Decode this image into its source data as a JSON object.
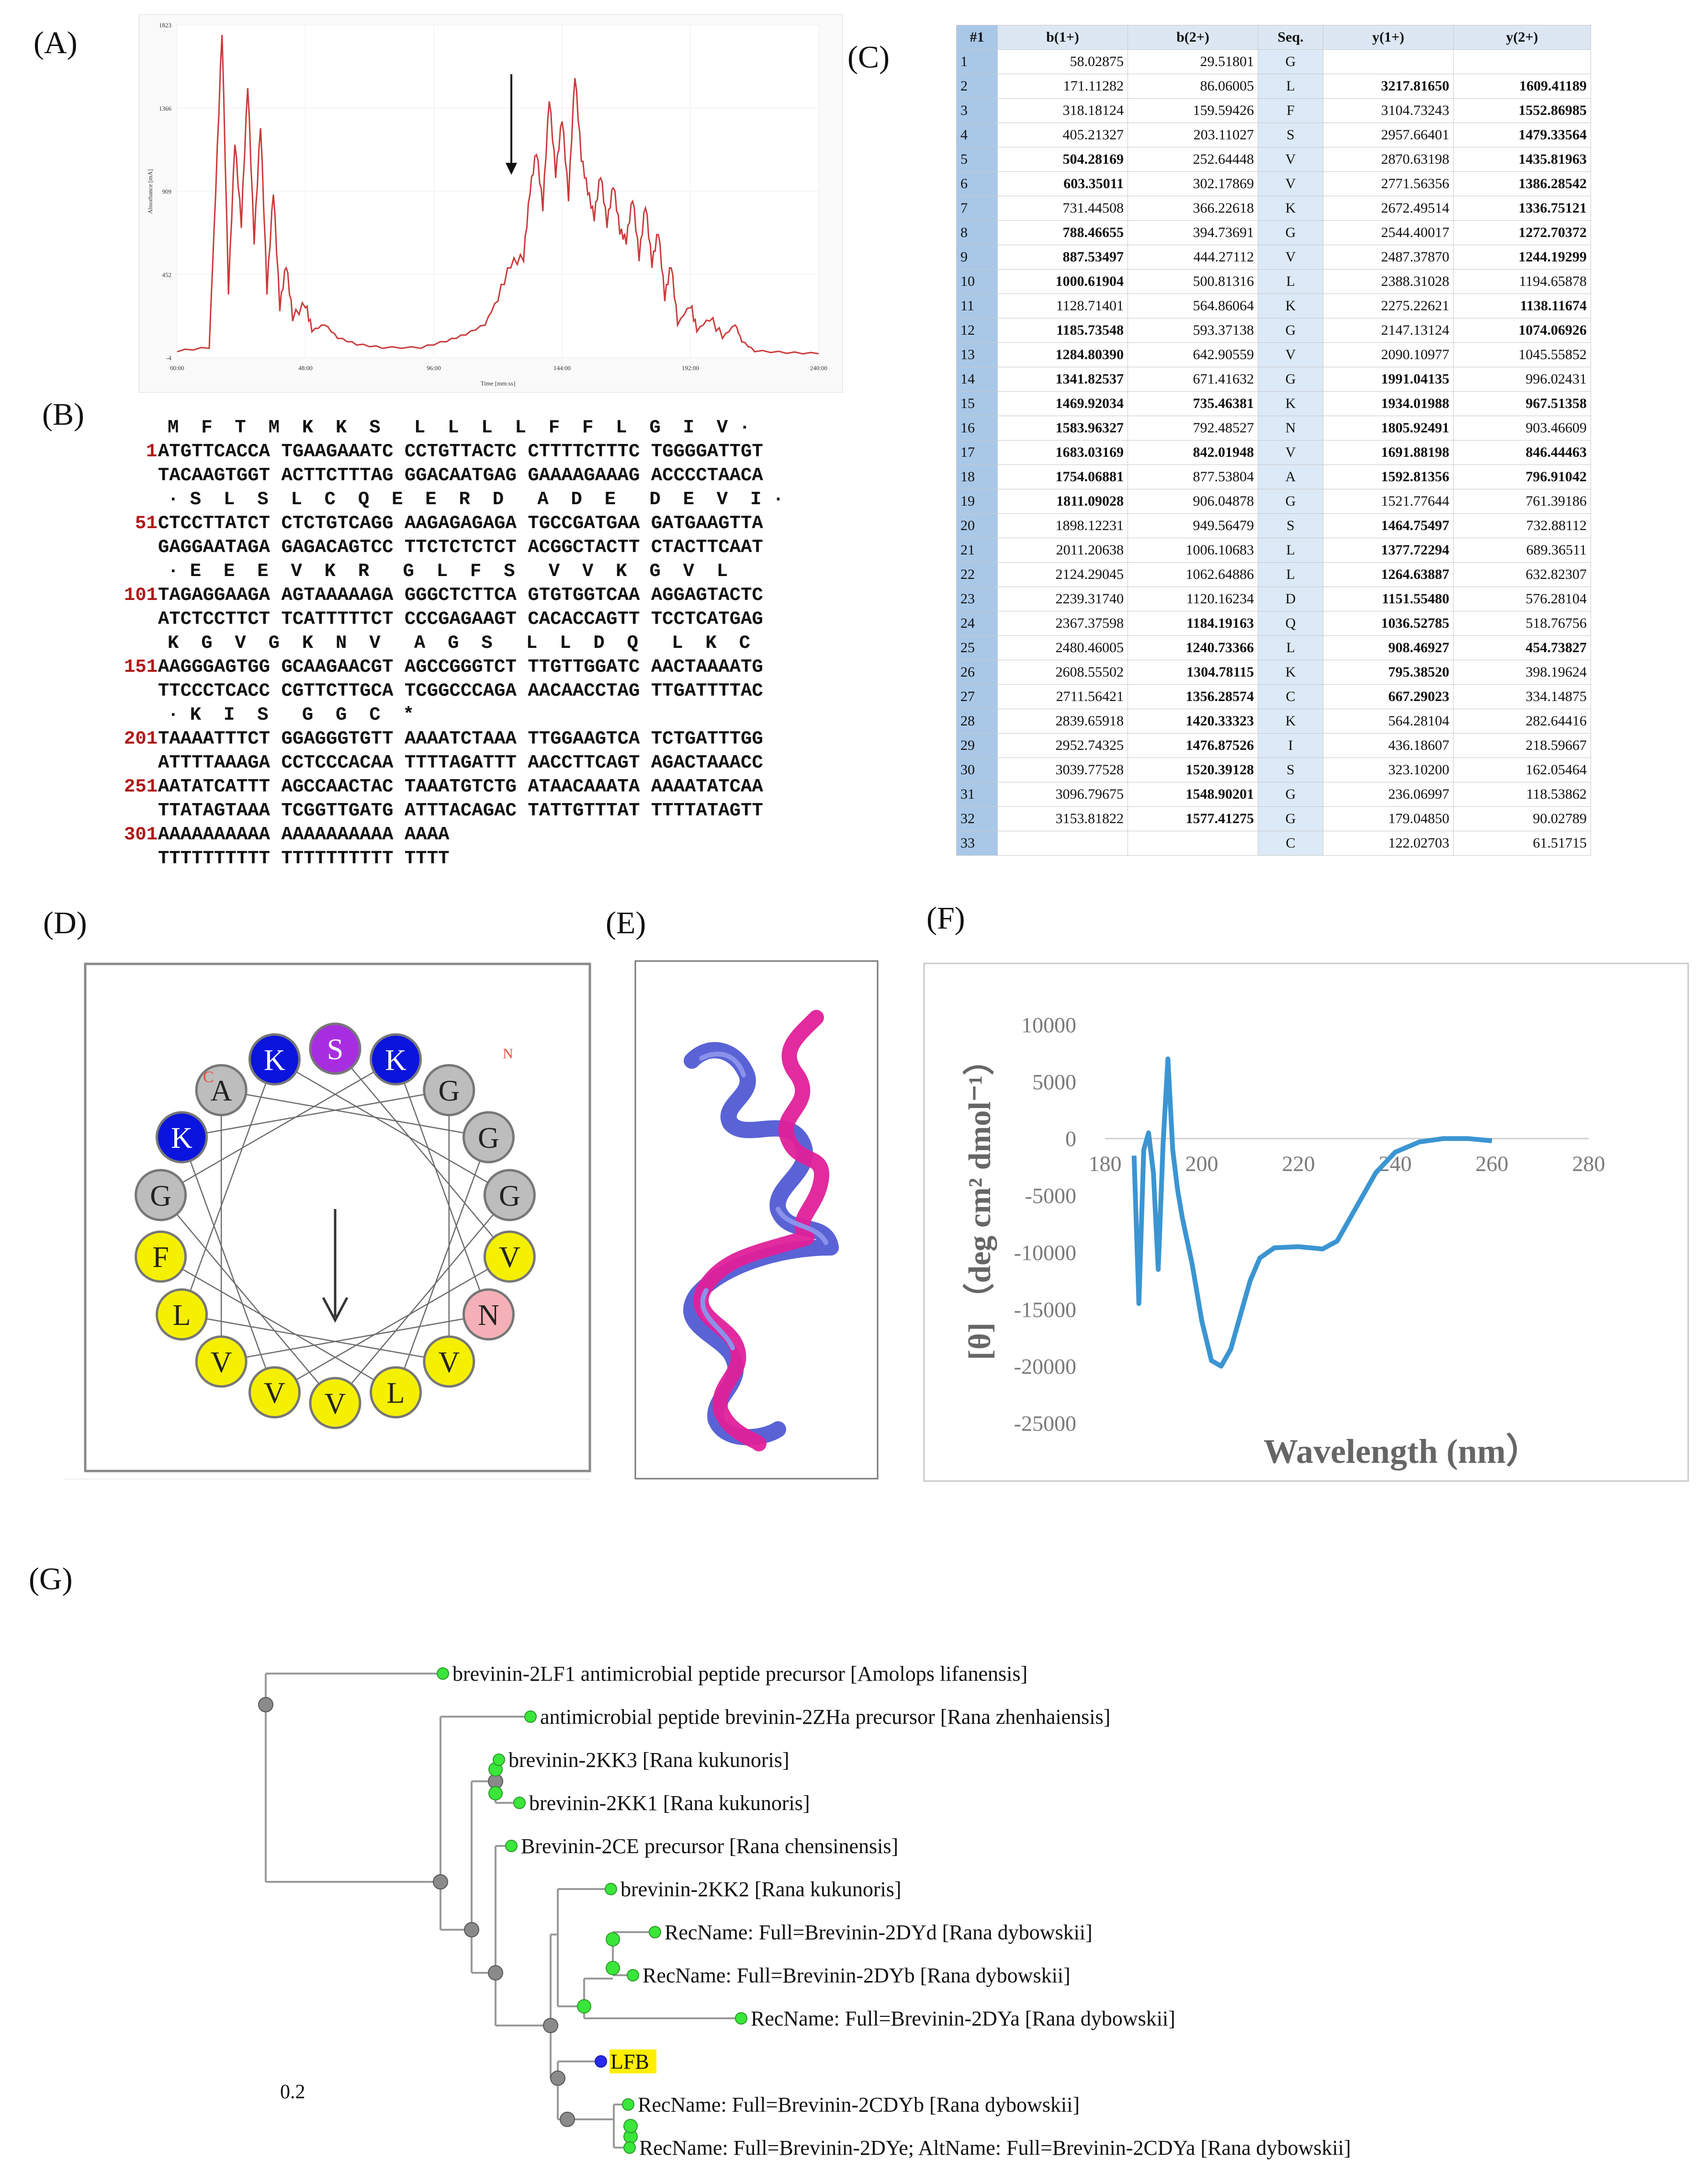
{
  "panels": {
    "A": "(A)",
    "B": "(B)",
    "C": "(C)",
    "D": "(D)",
    "E": "(E)",
    "F": "(F)",
    "G": "(G)"
  },
  "hplc": {
    "yticks": [
      "1823",
      "1366",
      "909",
      "452",
      "-4"
    ],
    "xticks": [
      "00:00",
      "48:00",
      "96:00",
      "144:00",
      "192:00",
      "240:00"
    ],
    "ylabel": "Absorbance [mA]",
    "xlabel": "Time [mm:ss]",
    "color": "#cc3a3a"
  },
  "dna": {
    "rows": [
      {
        "num": "",
        "text": "M  F  T  M  K  K  S   L  L  L  L  F  F  L  G  I  V ·",
        "kind": "aa"
      },
      {
        "num": "1",
        "text": "ATGTTCACCA TGAAGAAATC CCTGTTACTC CTTTTCTTTC TGGGGATTGT",
        "kind": "top"
      },
      {
        "num": "",
        "text": "TACAAGTGGT ACTTCTTTAG GGACAATGAG GAAAAGAAAG ACCCCTAACA",
        "kind": "bot"
      },
      {
        "num": "",
        "text": "· S  L  S  L  C  Q  E  E  R  D   A  D  E   D  E  V  I ·",
        "kind": "aa"
      },
      {
        "num": "51",
        "text": "CTCCTTATCT CTCTGTCAGG AAGAGAGAGA TGCCGATGAA GATGAAGTTA",
        "kind": "top"
      },
      {
        "num": "",
        "text": "GAGGAATAGA GAGACAGTCC TTCTCTCTCT ACGGCTACTT CTACTTCAAT",
        "kind": "bot"
      },
      {
        "num": "",
        "text": "· E  E  E  V  K  R   G  L  F  S   V  V  K  G  V  L",
        "kind": "aa"
      },
      {
        "num": "101",
        "text": "TAGAGGAAGA AGTAAAAAGA GGGCTCTTCA GTGTGGTCAA AGGAGTACTC",
        "kind": "top"
      },
      {
        "num": "",
        "text": "ATCTCCTTCT TCATTTTTCT CCCGAGAAGT CACACCAGTT TCCTCATGAG",
        "kind": "bot"
      },
      {
        "num": "",
        "text": "K  G  V  G  K  N  V   A  G  S   L  L  D  Q   L  K  C",
        "kind": "aa"
      },
      {
        "num": "151",
        "text": "AAGGGAGTGG GCAAGAACGT AGCCGGGTCT TTGTTGGATC AACTAAAATG",
        "kind": "top"
      },
      {
        "num": "",
        "text": "TTCCCTCACC CGTTCTTGCA TCGGCCCAGA AACAACCTAG TTGATTTTAC",
        "kind": "bot"
      },
      {
        "num": "",
        "text": "· K  I  S   G  G  C  *",
        "kind": "aa"
      },
      {
        "num": "201",
        "text": "TAAAATTTCT GGAGGGTGTT AAAATCTAAA TTGGAAGTCA TCTGATTTGG",
        "kind": "top"
      },
      {
        "num": "",
        "text": "ATTTTAAAGA CCTCCCACAA TTTTAGATTT AACCTTCAGT AGACTAAACC",
        "kind": "bot"
      },
      {
        "num": "251",
        "text": "AATATCATTT AGCCAACTAC TAAATGTCTG ATAACAAATA AAAATATCAA",
        "kind": "top"
      },
      {
        "num": "",
        "text": "TTATAGTAAA TCGGTTGATG ATTTACAGAC TATTGTTTAT TTTTATAGTT",
        "kind": "bot"
      },
      {
        "num": "301",
        "text": "AAAAAAAAAA AAAAAAAAAA AAAA",
        "kind": "top"
      },
      {
        "num": "",
        "text": "TTTTTTTTTT TTTTTTTTTT TTTT",
        "kind": "bot"
      }
    ]
  },
  "fragment_table": {
    "headers": [
      "#1",
      "b(1+)",
      "b(2+)",
      "Seq.",
      "y(1+)",
      "y(2+)"
    ],
    "rows": [
      [
        "1",
        "58.02875",
        "29.51801",
        "G",
        "",
        ""
      ],
      [
        "2",
        "171.11282",
        "86.06005",
        "L",
        "3217.81650",
        "1609.41189"
      ],
      [
        "3",
        "318.18124",
        "159.59426",
        "F",
        "3104.73243",
        "1552.86985"
      ],
      [
        "4",
        "405.21327",
        "203.11027",
        "S",
        "2957.66401",
        "1479.33564"
      ],
      [
        "5",
        "504.28169",
        "252.64448",
        "V",
        "2870.63198",
        "1435.81963"
      ],
      [
        "6",
        "603.35011",
        "302.17869",
        "V",
        "2771.56356",
        "1386.28542"
      ],
      [
        "7",
        "731.44508",
        "366.22618",
        "K",
        "2672.49514",
        "1336.75121"
      ],
      [
        "8",
        "788.46655",
        "394.73691",
        "G",
        "2544.40017",
        "1272.70372"
      ],
      [
        "9",
        "887.53497",
        "444.27112",
        "V",
        "2487.37870",
        "1244.19299"
      ],
      [
        "10",
        "1000.61904",
        "500.81316",
        "L",
        "2388.31028",
        "1194.65878"
      ],
      [
        "11",
        "1128.71401",
        "564.86064",
        "K",
        "2275.22621",
        "1138.11674"
      ],
      [
        "12",
        "1185.73548",
        "593.37138",
        "G",
        "2147.13124",
        "1074.06926"
      ],
      [
        "13",
        "1284.80390",
        "642.90559",
        "V",
        "2090.10977",
        "1045.55852"
      ],
      [
        "14",
        "1341.82537",
        "671.41632",
        "G",
        "1991.04135",
        "996.02431"
      ],
      [
        "15",
        "1469.92034",
        "735.46381",
        "K",
        "1934.01988",
        "967.51358"
      ],
      [
        "16",
        "1583.96327",
        "792.48527",
        "N",
        "1805.92491",
        "903.46609"
      ],
      [
        "17",
        "1683.03169",
        "842.01948",
        "V",
        "1691.88198",
        "846.44463"
      ],
      [
        "18",
        "1754.06881",
        "877.53804",
        "A",
        "1592.81356",
        "796.91042"
      ],
      [
        "19",
        "1811.09028",
        "906.04878",
        "G",
        "1521.77644",
        "761.39186"
      ],
      [
        "20",
        "1898.12231",
        "949.56479",
        "S",
        "1464.75497",
        "732.88112"
      ],
      [
        "21",
        "2011.20638",
        "1006.10683",
        "L",
        "1377.72294",
        "689.36511"
      ],
      [
        "22",
        "2124.29045",
        "1062.64886",
        "L",
        "1264.63887",
        "632.82307"
      ],
      [
        "23",
        "2239.31740",
        "1120.16234",
        "D",
        "1151.55480",
        "576.28104"
      ],
      [
        "24",
        "2367.37598",
        "1184.19163",
        "Q",
        "1036.52785",
        "518.76756"
      ],
      [
        "25",
        "2480.46005",
        "1240.73366",
        "L",
        "908.46927",
        "454.73827"
      ],
      [
        "26",
        "2608.55502",
        "1304.78115",
        "K",
        "795.38520",
        "398.19624"
      ],
      [
        "27",
        "2711.56421",
        "1356.28574",
        "C",
        "667.29023",
        "334.14875"
      ],
      [
        "28",
        "2839.65918",
        "1420.33323",
        "K",
        "564.28104",
        "282.64416"
      ],
      [
        "29",
        "2952.74325",
        "1476.87526",
        "I",
        "436.18607",
        "218.59667"
      ],
      [
        "30",
        "3039.77528",
        "1520.39128",
        "S",
        "323.10200",
        "162.05464"
      ],
      [
        "31",
        "3096.79675",
        "1548.90201",
        "G",
        "236.06997",
        "118.53862"
      ],
      [
        "32",
        "3153.81822",
        "1577.41275",
        "G",
        "179.04850",
        "90.02789"
      ],
      [
        "33",
        "",
        "",
        "C",
        "122.02703",
        "61.51715"
      ]
    ],
    "bold": [
      [
        0,
        0,
        0,
        0
      ],
      [
        0,
        0,
        1,
        1
      ],
      [
        0,
        0,
        0,
        1
      ],
      [
        0,
        0,
        0,
        1
      ],
      [
        1,
        0,
        0,
        1
      ],
      [
        1,
        0,
        0,
        1
      ],
      [
        0,
        0,
        0,
        1
      ],
      [
        1,
        0,
        0,
        1
      ],
      [
        1,
        0,
        0,
        1
      ],
      [
        1,
        0,
        0,
        0
      ],
      [
        0,
        0,
        0,
        1
      ],
      [
        1,
        0,
        0,
        1
      ],
      [
        1,
        0,
        0,
        0
      ],
      [
        1,
        0,
        1,
        0
      ],
      [
        1,
        1,
        1,
        1
      ],
      [
        1,
        0,
        1,
        0
      ],
      [
        1,
        1,
        1,
        1
      ],
      [
        1,
        0,
        1,
        1
      ],
      [
        1,
        0,
        0,
        0
      ],
      [
        0,
        0,
        1,
        0
      ],
      [
        0,
        0,
        1,
        0
      ],
      [
        0,
        0,
        1,
        0
      ],
      [
        0,
        0,
        1,
        0
      ],
      [
        0,
        1,
        1,
        0
      ],
      [
        0,
        1,
        1,
        1
      ],
      [
        0,
        1,
        1,
        0
      ],
      [
        0,
        1,
        1,
        0
      ],
      [
        0,
        1,
        0,
        0
      ],
      [
        0,
        1,
        0,
        0
      ],
      [
        0,
        1,
        0,
        0
      ],
      [
        0,
        1,
        0,
        0
      ],
      [
        0,
        1,
        0,
        0
      ],
      [
        0,
        0,
        0,
        0
      ]
    ]
  },
  "helical_wheel": {
    "residues": [
      {
        "aa": "S",
        "color": "#a72ee0",
        "text": "#ffffff"
      },
      {
        "aa": "K",
        "color": "#0a14dc",
        "text": "#ffffff"
      },
      {
        "aa": "G",
        "color": "#bdbdbd",
        "text": "#222222"
      },
      {
        "aa": "G",
        "color": "#bdbdbd",
        "text": "#222222"
      },
      {
        "aa": "G",
        "color": "#bdbdbd",
        "text": "#222222"
      },
      {
        "aa": "V",
        "color": "#f5f000",
        "text": "#222222"
      },
      {
        "aa": "N",
        "color": "#f4b0b6",
        "text": "#222222"
      },
      {
        "aa": "V",
        "color": "#f5f000",
        "text": "#222222"
      },
      {
        "aa": "L",
        "color": "#f5f000",
        "text": "#222222"
      },
      {
        "aa": "V",
        "color": "#f5f000",
        "text": "#222222"
      },
      {
        "aa": "V",
        "color": "#f5f000",
        "text": "#222222"
      },
      {
        "aa": "V",
        "color": "#f5f000",
        "text": "#222222"
      },
      {
        "aa": "L",
        "color": "#f5f000",
        "text": "#222222"
      },
      {
        "aa": "F",
        "color": "#f5f000",
        "text": "#222222"
      },
      {
        "aa": "G",
        "color": "#bdbdbd",
        "text": "#222222"
      },
      {
        "aa": "K",
        "color": "#0a14dc",
        "text": "#ffffff"
      },
      {
        "aa": "A",
        "color": "#bdbdbd",
        "text": "#222222"
      },
      {
        "aa": "K",
        "color": "#0a14dc",
        "text": "#ffffff"
      }
    ],
    "c_label": "C",
    "n_label": "N"
  },
  "structure": {
    "colors": [
      "#5a63d6",
      "#e0209a"
    ]
  },
  "cd_chart": {
    "chart_data": {
      "type": "line",
      "x": [
        186,
        187,
        188,
        189,
        190,
        191,
        192,
        193,
        194,
        195,
        196,
        198,
        200,
        202,
        204,
        206,
        208,
        210,
        212,
        215,
        220,
        225,
        228,
        232,
        236,
        240,
        245,
        250,
        255,
        260
      ],
      "y": [
        -1500,
        -14500,
        -1000,
        500,
        -3000,
        -11500,
        -500,
        7000,
        -1000,
        -4500,
        -7000,
        -11000,
        -16000,
        -19500,
        -20000,
        -18500,
        -15500,
        -12500,
        -10500,
        -9600,
        -9500,
        -9700,
        -9000,
        -6000,
        -3000,
        -1200,
        -300,
        0,
        0,
        -200
      ],
      "title": "",
      "xlabel": "Wavelength (nm）",
      "ylabel": "[θ] （deg cm² dmol⁻¹）",
      "xlim": [
        180,
        280
      ],
      "ylim": [
        -25000,
        10000
      ],
      "xticks": [
        "180",
        "200",
        "220",
        "240",
        "260",
        "280"
      ],
      "yticks": [
        "10000",
        "5000",
        "0",
        "-5000",
        "-10000",
        "-15000",
        "-20000",
        "-25000"
      ],
      "color": "#3b95d2"
    }
  },
  "tree": {
    "leaves": [
      {
        "label": "brevinin-2LF1 antimicrobial peptide precursor [Amolops lifanensis]"
      },
      {
        "label": "antimicrobial peptide brevinin-2ZHa precursor [Rana zhenhaiensis]"
      },
      {
        "label": "brevinin-2KK3 [Rana kukunoris]"
      },
      {
        "label": "brevinin-2KK1 [Rana kukunoris]"
      },
      {
        "label": "Brevinin-2CE precursor [Rana chensinensis]"
      },
      {
        "label": "brevinin-2KK2 [Rana kukunoris]"
      },
      {
        "label": "RecName: Full=Brevinin-2DYd [Rana dybowskii]"
      },
      {
        "label": "RecName: Full=Brevinin-2DYb [Rana dybowskii]"
      },
      {
        "label": "RecName: Full=Brevinin-2DYa [Rana dybowskii]"
      },
      {
        "label": "LFB"
      },
      {
        "label": "RecName: Full=Brevinin-2CDYb [Rana dybowskii]"
      },
      {
        "label": "RecName: Full=Brevinin-2DYe; AltName: Full=Brevinin-2CDYa [Rana dybowskii]"
      }
    ],
    "scale": "0.2",
    "highlight": "#ffee00",
    "leaf_color": "#39e639",
    "query_color": "#2a2aee",
    "node_color": "#8a8a8a"
  }
}
